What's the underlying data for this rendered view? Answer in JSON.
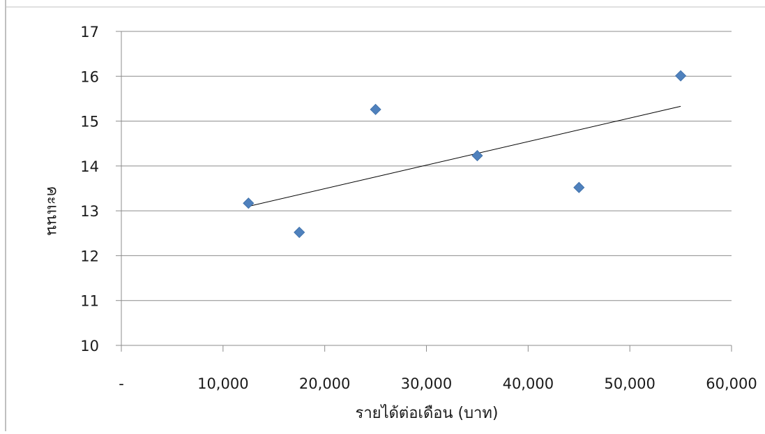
{
  "chart_data": {
    "type": "scatter",
    "title": "",
    "xlabel": "รายได้ต่อเดือน (บาท)",
    "ylabel": "คะแนน",
    "xlim": [
      0,
      60000
    ],
    "ylim": [
      10,
      17
    ],
    "x_ticks": [
      0,
      10000,
      20000,
      30000,
      40000,
      50000,
      60000
    ],
    "x_tick_labels": [
      "-",
      "10,000",
      "20,000",
      "30,000",
      "40,000",
      "50,000",
      "60,000"
    ],
    "y_ticks": [
      10,
      11,
      12,
      13,
      14,
      15,
      16,
      17
    ],
    "y_tick_labels": [
      "10",
      "11",
      "12",
      "13",
      "14",
      "15",
      "16",
      "17"
    ],
    "grid": "horizontal",
    "legend": "none",
    "series": [
      {
        "marker": "diamond",
        "color": "#4f81bd",
        "points": [
          {
            "x": 12500,
            "y": 13.17
          },
          {
            "x": 17500,
            "y": 12.52
          },
          {
            "x": 25000,
            "y": 15.26
          },
          {
            "x": 35000,
            "y": 14.23
          },
          {
            "x": 45000,
            "y": 13.52
          },
          {
            "x": 55000,
            "y": 16.01
          }
        ]
      }
    ],
    "trendline": {
      "type": "linear",
      "color": "#000000",
      "x": [
        12500,
        55000
      ],
      "y": [
        13.1,
        15.33
      ]
    }
  }
}
